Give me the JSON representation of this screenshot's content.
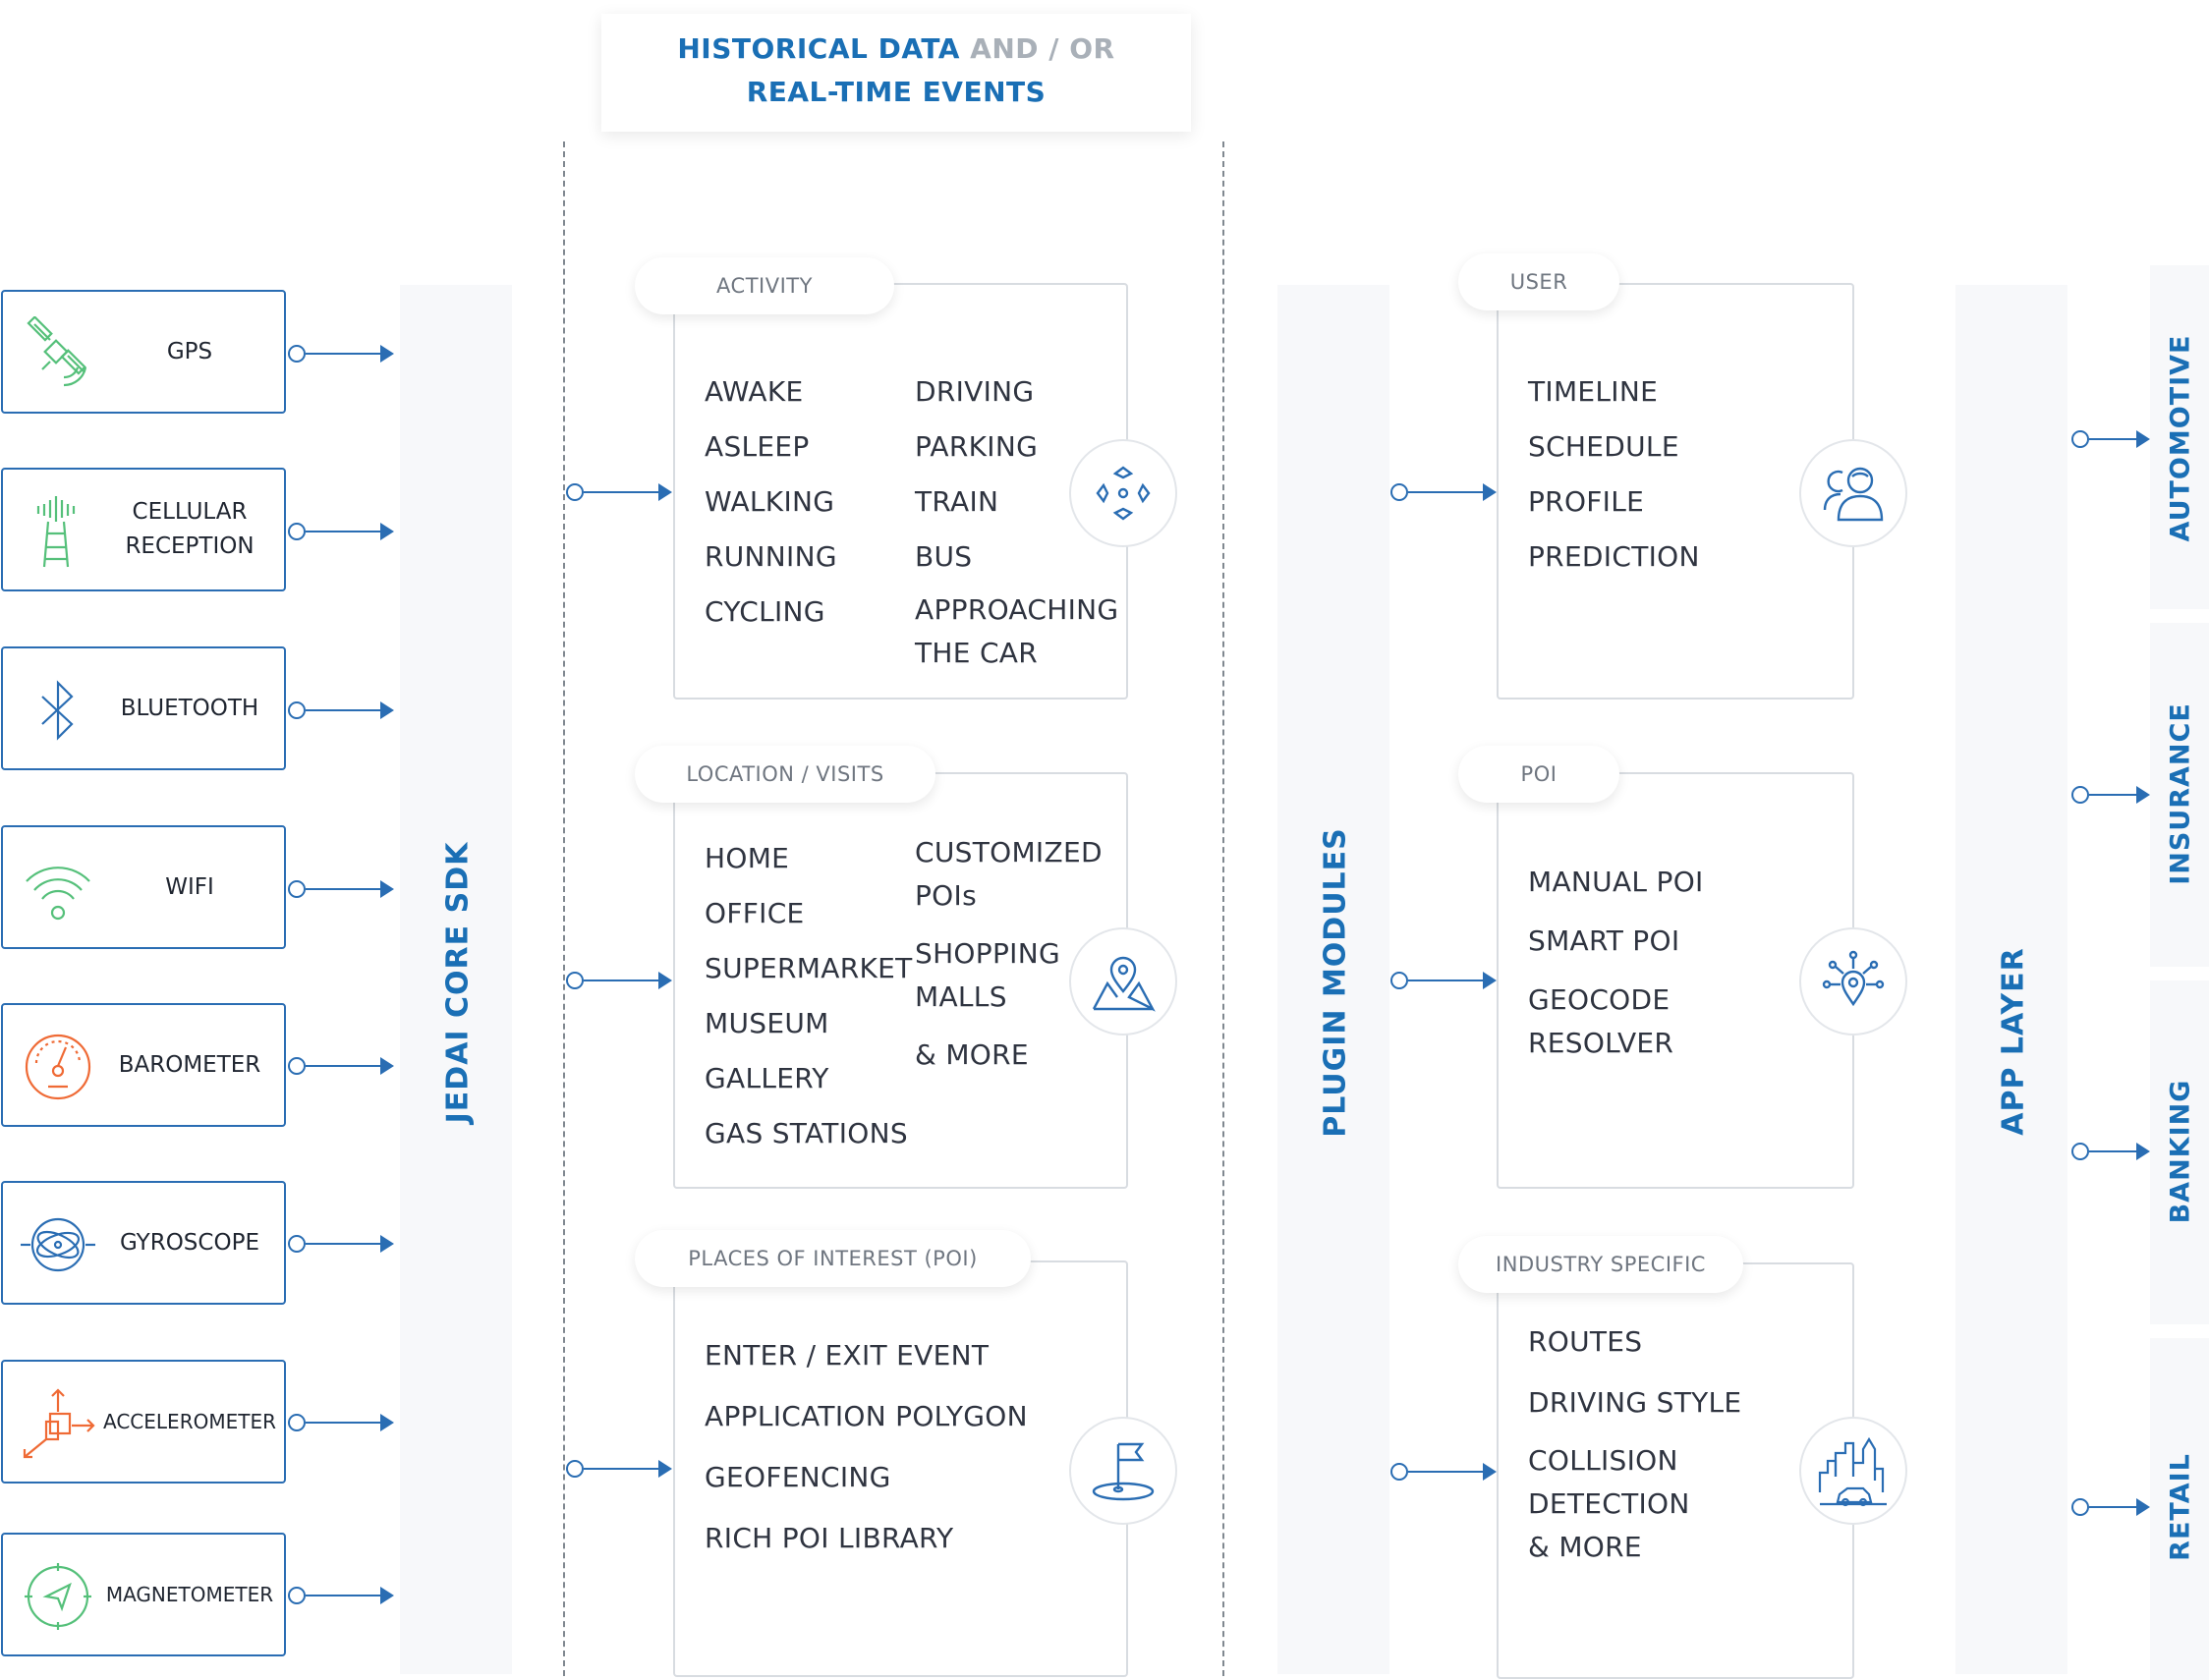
{
  "header": {
    "part1": "HISTORICAL DATA",
    "part2": " AND / OR",
    "part3": "REAL-TIME EVENTS"
  },
  "sensors": [
    {
      "label": "GPS",
      "icon": "satellite-icon",
      "color": "#55c07a"
    },
    {
      "label": "CELLULAR\nRECEPTION",
      "icon": "cell-tower-icon",
      "color": "#55c07a"
    },
    {
      "label": "BLUETOOTH",
      "icon": "bluetooth-icon",
      "color": "#2a6db3"
    },
    {
      "label": "WIFI",
      "icon": "wifi-icon",
      "color": "#55c07a"
    },
    {
      "label": "BAROMETER",
      "icon": "barometer-icon",
      "color": "#ef6a35"
    },
    {
      "label": "GYROSCOPE",
      "icon": "gyroscope-icon",
      "color": "#2a6db3"
    },
    {
      "label": "ACCELEROMETER",
      "icon": "accelerometer-icon",
      "color": "#ef6a35"
    },
    {
      "label": "MAGNETOMETER",
      "icon": "compass-icon",
      "color": "#55c07a"
    }
  ],
  "core_sdk": "JEDAI CORE SDK",
  "plugin_modules": "PLUGIN MODULES",
  "app_layer": "APP LAYER",
  "activity": {
    "tab": "ACTIVITY",
    "col1": [
      "AWAKE",
      "ASLEEP",
      "WALKING",
      "RUNNING",
      "CYCLING"
    ],
    "col2": [
      "DRIVING",
      "PARKING",
      "TRAIN",
      "BUS",
      "APPROACHING\nTHE CAR"
    ],
    "icon": "activity-arrows-icon"
  },
  "location": {
    "tab": "LOCATION / VISITS",
    "col1": [
      "HOME",
      "OFFICE",
      "SUPERMARKET",
      "MUSEUM",
      "GALLERY",
      "GAS STATIONS"
    ],
    "col2": [
      "CUSTOMIZED\nPOIs",
      "SHOPPING\nMALLS",
      "& MORE"
    ],
    "icon": "map-pin-icon"
  },
  "poi_places": {
    "tab": "PLACES OF INTEREST (POI)",
    "items": [
      "ENTER / EXIT EVENT",
      "APPLICATION POLYGON",
      "GEOFENCING",
      "RICH POI LIBRARY"
    ],
    "icon": "flag-icon"
  },
  "user": {
    "tab": "USER",
    "items": [
      "TIMELINE",
      "SCHEDULE",
      "PROFILE",
      "PREDICTION"
    ],
    "icon": "users-icon"
  },
  "poi": {
    "tab": "POI",
    "items": [
      "MANUAL POI",
      "SMART POI",
      "GEOCODE\nRESOLVER"
    ],
    "icon": "pin-network-icon"
  },
  "industry": {
    "tab": "INDUSTRY SPECIFIC",
    "items": [
      "ROUTES",
      "DRIVING STYLE",
      "COLLISION\nDETECTION\n& MORE"
    ],
    "icon": "city-car-icon"
  },
  "apps": [
    "AUTOMOTIVE",
    "INSURANCE",
    "BANKING",
    "RETAIL"
  ]
}
